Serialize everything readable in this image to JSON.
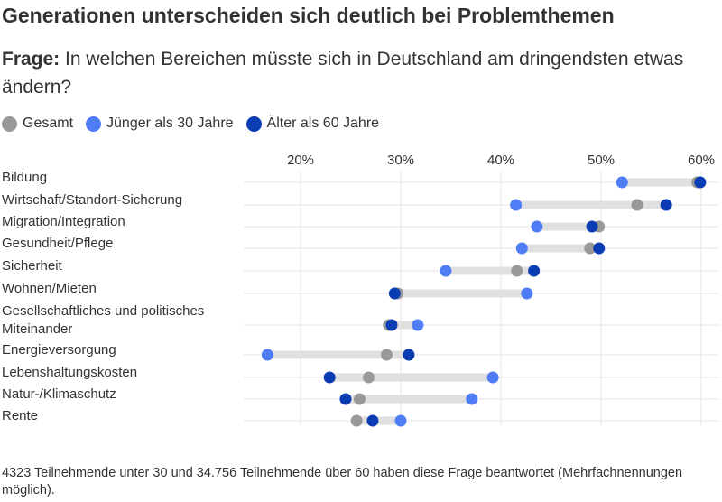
{
  "title": "Generationen unterscheiden sich deutlich bei Problemthemen",
  "question": {
    "prefix": "Frage:",
    "text": "In welchen Bereichen müsste sich in Deutschland am dringendsten etwas ändern?"
  },
  "footnote": "4323 Teilnehmende unter 30 und 34.756 Teilnehmende über 60 haben diese Frage beantwortet (Mehrfachnennungen möglich).",
  "colors": {
    "gesamt": "#999999",
    "young": "#4f7df5",
    "old": "#0a3cb4",
    "bar": "#e0e0e0",
    "grid": "#e6e6e6"
  },
  "legend": [
    {
      "label": "Gesamt",
      "color": "#999999"
    },
    {
      "label": "Jünger als 30 Jahre",
      "color": "#4f7df5"
    },
    {
      "label": "Älter als 60 Jahre",
      "color": "#0a3cb4"
    }
  ],
  "chart_data": {
    "type": "dot",
    "x_ticks": [
      "20%",
      "30%",
      "40%",
      "50%",
      "60%"
    ],
    "x_tick_values": [
      20,
      30,
      40,
      50,
      60
    ],
    "xlim": [
      15,
      62
    ],
    "grid": true,
    "legend_position": "top-left",
    "categories": [
      [
        "Bildung"
      ],
      [
        "Wirtschaft/Standort-Sicherung"
      ],
      [
        "Migration/Integration"
      ],
      [
        "Gesundheit/Pflege"
      ],
      [
        "Sicherheit"
      ],
      [
        "Wohnen/Mieten"
      ],
      [
        "Gesellschaftliches und politisches",
        "Miteinander"
      ],
      [
        "Energieversorgung"
      ],
      [
        "Lebenshaltungskosten"
      ],
      [
        "Natur-/Klimaschutz"
      ],
      [
        "Rente"
      ]
    ],
    "series": [
      {
        "name": "Gesamt",
        "values": [
          59.6,
          53.6,
          49.8,
          48.9,
          41.6,
          29.7,
          28.8,
          28.6,
          26.8,
          25.9,
          25.6
        ]
      },
      {
        "name": "Jünger als 30 Jahre",
        "values": [
          52.1,
          41.5,
          43.6,
          42.1,
          34.5,
          42.6,
          31.7,
          16.7,
          39.2,
          37.1,
          30.0
        ]
      },
      {
        "name": "Älter als 60 Jahre",
        "values": [
          59.9,
          56.5,
          49.1,
          49.8,
          43.3,
          29.4,
          29.1,
          30.8,
          22.9,
          24.5,
          27.2
        ]
      }
    ]
  }
}
